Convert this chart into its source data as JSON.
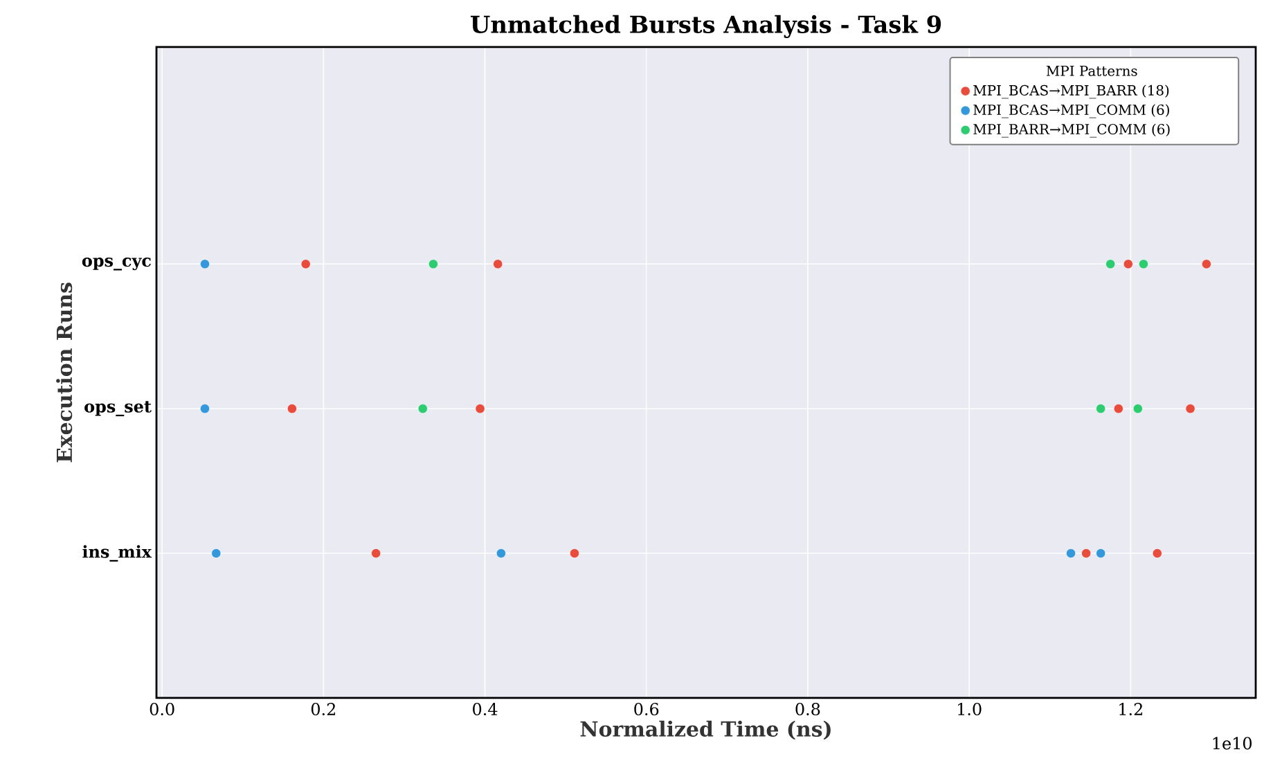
{
  "chart_data": {
    "type": "scatter",
    "orientation": "horizontal",
    "title": "Unmatched Bursts Analysis - Task 9",
    "xlabel": "Normalized Time (ns)",
    "ylabel": "Execution Runs",
    "legend_title": "MPI Patterns",
    "annotations": [
      "1e10"
    ],
    "categories": [
      "ops_cyc",
      "ops_set",
      "ins_mix"
    ],
    "xlim": [
      -0.007,
      1.355
    ],
    "xticks": [
      {
        "value": 0,
        "label": "0.0"
      },
      0.2,
      0.4,
      0.6,
      0.8,
      {
        "value": 1,
        "label": "1.0"
      },
      1.2
    ],
    "grid": true,
    "legend": "top right",
    "marker": "circle",
    "series": [
      {
        "name": "MPI_BCAS→MPI_BARR (18)",
        "color": "#e74c3c",
        "x": [
          "ops_cyc",
          "ops_cyc",
          "ops_cyc",
          "ops_cyc",
          "ops_set",
          "ops_set",
          "ops_set",
          "ops_set",
          "ins_mix",
          "ins_mix",
          "ins_mix",
          "ins_mix"
        ],
        "values": [
          0.178,
          0.416,
          1.197,
          1.294,
          0.161,
          0.394,
          1.185,
          1.274,
          0.265,
          0.511,
          1.145,
          1.233
        ]
      },
      {
        "name": "MPI_BCAS→MPI_COMM (6)",
        "color": "#3498db",
        "x": [
          "ops_cyc",
          "ops_set",
          "ins_mix",
          "ins_mix",
          "ins_mix",
          "ins_mix"
        ],
        "values": [
          0.053,
          0.053,
          0.067,
          0.42,
          1.126,
          1.163
        ]
      },
      {
        "name": "MPI_BARR→MPI_COMM (6)",
        "color": "#2ecc71",
        "x": [
          "ops_cyc",
          "ops_cyc",
          "ops_cyc",
          "ops_set",
          "ops_set",
          "ops_set"
        ],
        "values": [
          0.336,
          1.175,
          1.216,
          0.323,
          1.163,
          1.209
        ]
      }
    ]
  }
}
